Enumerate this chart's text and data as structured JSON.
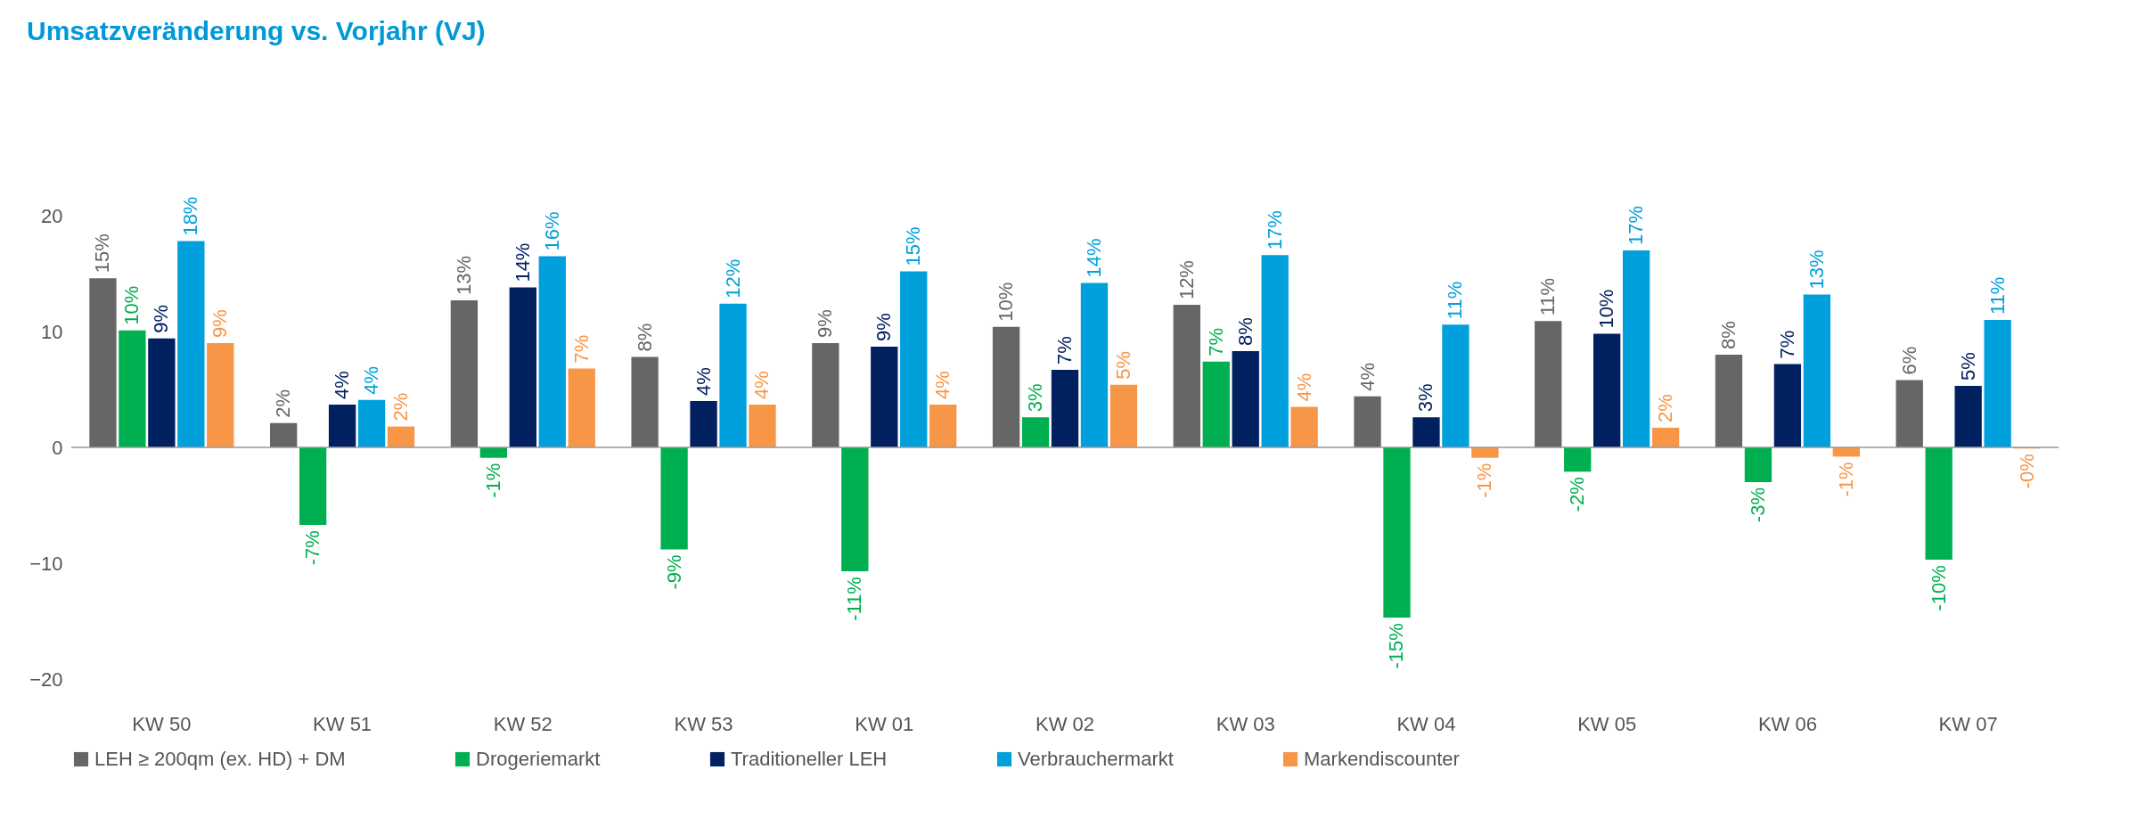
{
  "chart_data": {
    "type": "bar",
    "title": "Umsatzveränderung vs. Vorjahr (VJ)",
    "categories": [
      "KW 50",
      "KW 51",
      "KW 52",
      "KW 53",
      "KW 01",
      "KW 02",
      "KW 03",
      "KW 04",
      "KW 05",
      "KW 06",
      "KW 07"
    ],
    "series": [
      {
        "name": "LEH ≥ 200qm (ex. HD) + DM",
        "color": "#666666",
        "values": [
          14.6,
          2.1,
          12.7,
          7.8,
          9.0,
          10.4,
          12.3,
          4.4,
          10.9,
          8.0,
          5.8
        ],
        "value_labels": [
          "15%",
          "2%",
          "13%",
          "8%",
          "9%",
          "10%",
          "12%",
          "4%",
          "11%",
          "8%",
          "6%"
        ]
      },
      {
        "name": "Drogeriemarkt",
        "color": "#00b050",
        "values": [
          10.1,
          -6.7,
          -0.9,
          -8.8,
          -10.7,
          2.6,
          7.4,
          -14.7,
          -2.1,
          -3.0,
          -9.7
        ],
        "value_labels": [
          "10%",
          "-7%",
          "-1%",
          "-9%",
          "-11%",
          "3%",
          "7%",
          "-15%",
          "-2%",
          "-3%",
          "-10%"
        ]
      },
      {
        "name": "Traditioneller LEH",
        "color": "#002060",
        "values": [
          9.4,
          3.7,
          13.8,
          4.0,
          8.7,
          6.7,
          8.3,
          2.6,
          9.8,
          7.2,
          5.3
        ],
        "value_labels": [
          "9%",
          "4%",
          "14%",
          "4%",
          "9%",
          "7%",
          "8%",
          "3%",
          "10%",
          "7%",
          "5%"
        ]
      },
      {
        "name": "Verbrauchermarkt",
        "color": "#00a0dc",
        "values": [
          17.8,
          4.1,
          16.5,
          12.4,
          15.2,
          14.2,
          16.6,
          10.6,
          17.0,
          13.2,
          11.0
        ],
        "value_labels": [
          "18%",
          "4%",
          "16%",
          "12%",
          "15%",
          "14%",
          "17%",
          "11%",
          "17%",
          "13%",
          "11%"
        ]
      },
      {
        "name": "Markendiscounter",
        "color": "#f79646",
        "values": [
          9.0,
          1.8,
          6.8,
          3.7,
          3.7,
          5.4,
          3.5,
          -0.9,
          1.7,
          -0.8,
          -0.1
        ],
        "value_labels": [
          "9%",
          "2%",
          "7%",
          "4%",
          "4%",
          "5%",
          "4%",
          "-1%",
          "2%",
          "-1%",
          "-0%"
        ]
      }
    ],
    "ylim": [
      -20,
      20
    ],
    "yticks": [
      -20,
      -10,
      0,
      10,
      20
    ],
    "legend": "bottom",
    "ref_lines": [
      {
        "axis": "y",
        "value": 0,
        "color": "#999999"
      }
    ]
  }
}
